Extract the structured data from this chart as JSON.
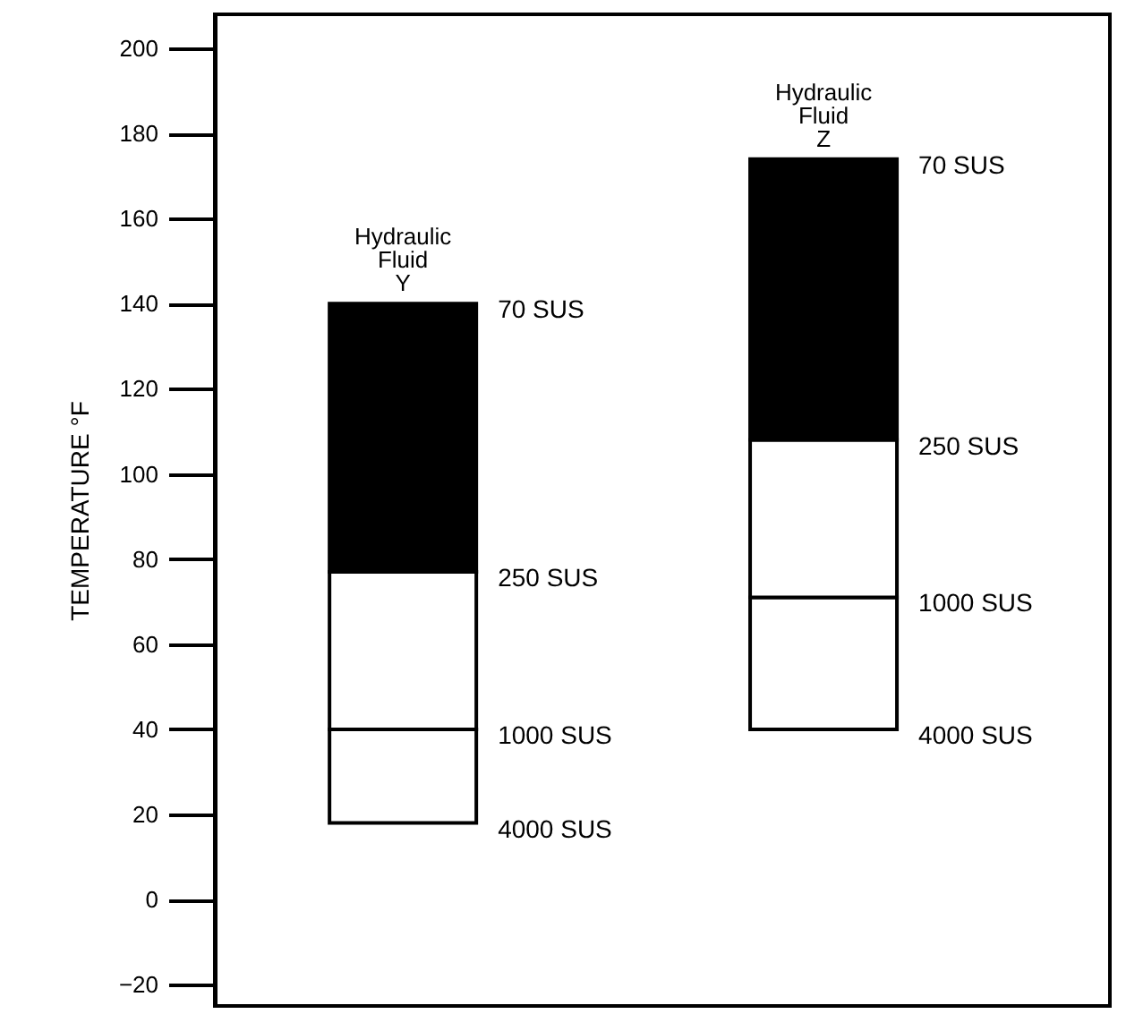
{
  "chart_data": {
    "type": "bar",
    "ylabel": "TEMPERATURE °F",
    "categories": [
      "Hydraulic Fluid Y",
      "Hydraulic Fluid Z"
    ],
    "stacked": true,
    "series": [
      {
        "color": "#ffffff",
        "base": [
          18,
          40
        ],
        "values": [
          22,
          31
        ]
      },
      {
        "color": "#ffffff",
        "values": [
          37,
          37
        ]
      },
      {
        "color": "#000000",
        "values": [
          63,
          66
        ]
      }
    ],
    "ylim": [
      -25,
      208
    ],
    "yticks": [
      -20,
      0,
      20,
      40,
      60,
      80,
      100,
      120,
      140,
      160,
      180,
      200
    ],
    "annotations": [
      "4000 SUS",
      "1000 SUS",
      "250 SUS",
      "70 SUS",
      "4000 SUS",
      "1000 SUS",
      "250 SUS",
      "70 SUS"
    ]
  }
}
